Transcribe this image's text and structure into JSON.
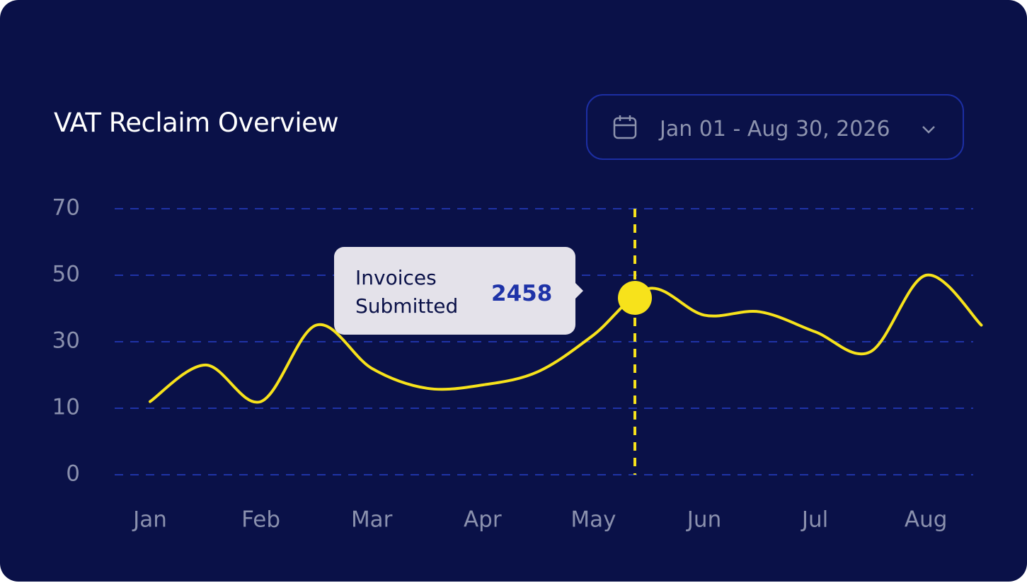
{
  "chart_data": {
    "type": "line",
    "title": "VAT Reclaim Overview",
    "date_range": "Jan 01 - Aug 30, 2026",
    "categories": [
      "Jan",
      null,
      "Feb",
      null,
      "Mar",
      null,
      "Apr",
      null,
      "May",
      null,
      "Jun",
      null,
      "Jul",
      null,
      "Aug",
      null
    ],
    "values": [
      12,
      23,
      12,
      35,
      22,
      16,
      17,
      21,
      32,
      46,
      38,
      39,
      33,
      27,
      50,
      35
    ],
    "color": "#f7e21b",
    "ylim": [
      0,
      70
    ],
    "yticks": [
      0,
      10,
      30,
      50,
      70
    ],
    "grid": true,
    "tooltip": {
      "label": "Invoices Submitted",
      "value": 2458
    }
  }
}
